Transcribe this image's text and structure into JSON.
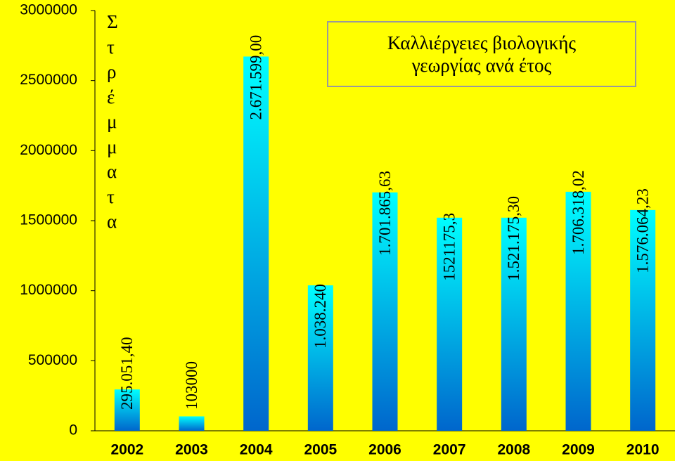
{
  "chart_data": {
    "type": "bar",
    "title": "Καλλιέργειες βιολογικής γεωργίας ανά έτος",
    "y_label": "Στρέμματα",
    "categories": [
      "2002",
      "2003",
      "2004",
      "2005",
      "2006",
      "2007",
      "2008",
      "2009",
      "2010"
    ],
    "values": [
      295051.4,
      103000,
      2671599.0,
      1038240,
      1701865.63,
      1521175.3,
      1521175.3,
      1706318.02,
      1576064.23
    ],
    "value_labels": [
      "295.051,40",
      "103000",
      "2.671.599,00",
      "1.038.240",
      "1.701.865,63",
      "1521175,3",
      "1.521.175,30",
      "1.706.318,02",
      "1.576.064,23"
    ],
    "gradient": [
      "#00ffff",
      "#0066cc"
    ],
    "ylim": [
      0,
      3000000
    ],
    "yticks": [
      0,
      500000,
      1000000,
      1500000,
      2000000,
      2500000,
      3000000
    ],
    "grid": false
  }
}
